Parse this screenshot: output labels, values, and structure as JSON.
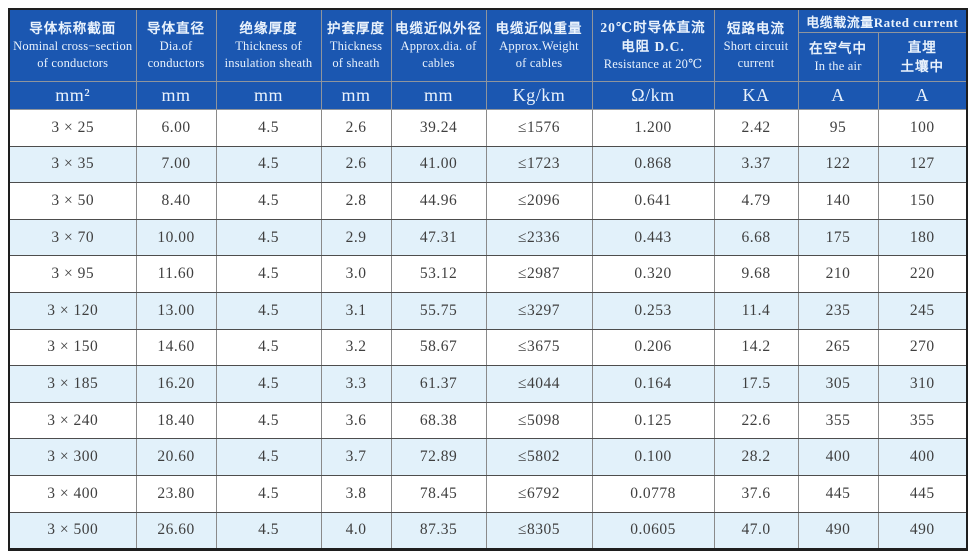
{
  "colors": {
    "header_bg": "#1b57b1",
    "header_text": "#e9f2fc",
    "row_alt_bg": "#e2f1fa",
    "grid_line": "#8a8a8a",
    "body_text": "#3f3f3f",
    "outer_border": "#1e1e1e"
  },
  "header": {
    "cols": [
      {
        "key": "nominal_cross_section",
        "title_lines": [
          "导体标称截面",
          "Nominal cross−section",
          "of conductors"
        ],
        "unit": "mm²"
      },
      {
        "key": "dia_of_conductors",
        "title_lines": [
          "导体直径",
          "Dia.of",
          "conductors"
        ],
        "unit": "mm"
      },
      {
        "key": "insulation_thickness",
        "title_lines": [
          "绝缘厚度",
          "Thickness of",
          "insulation sheath"
        ],
        "unit": "mm"
      },
      {
        "key": "sheath_thickness",
        "title_lines": [
          "护套厚度",
          "Thickness",
          "of sheath"
        ],
        "unit": "mm"
      },
      {
        "key": "approx_dia",
        "title_lines": [
          "电缆近似外径",
          "Approx.dia. of",
          "cables"
        ],
        "unit": "mm"
      },
      {
        "key": "approx_weight",
        "title_lines": [
          "电缆近似重量",
          "Approx.Weight",
          "of cables"
        ],
        "unit": "Kg/km"
      },
      {
        "key": "dc_resistance",
        "title_lines": [
          "20℃时导体直流",
          "电阻 D.C.",
          "Resistance at 20℃"
        ],
        "unit": "Ω/km"
      },
      {
        "key": "short_circuit_current",
        "title_lines": [
          "短路电流",
          "Short circuit",
          "current"
        ],
        "unit": "KA"
      }
    ],
    "rated_group": {
      "title": "电缆载流量Rated current",
      "sub_cols": [
        {
          "key": "current_in_air",
          "title_lines": [
            "在空气中",
            "In the air"
          ],
          "unit": "A"
        },
        {
          "key": "current_buried",
          "title_lines": [
            "直埋",
            "土壤中"
          ],
          "unit": "A"
        }
      ]
    }
  },
  "column_keys": [
    "nominal_cross_section",
    "dia_of_conductors",
    "insulation_thickness",
    "sheath_thickness",
    "approx_dia",
    "approx_weight",
    "dc_resistance",
    "short_circuit_current",
    "current_in_air",
    "current_buried"
  ],
  "rows": [
    [
      "3 × 25",
      "6.00",
      "4.5",
      "2.6",
      "39.24",
      "≤1576",
      "1.200",
      "2.42",
      "95",
      "100"
    ],
    [
      "3 × 35",
      "7.00",
      "4.5",
      "2.6",
      "41.00",
      "≤1723",
      "0.868",
      "3.37",
      "122",
      "127"
    ],
    [
      "3 × 50",
      "8.40",
      "4.5",
      "2.8",
      "44.96",
      "≤2096",
      "0.641",
      "4.79",
      "140",
      "150"
    ],
    [
      "3 × 70",
      "10.00",
      "4.5",
      "2.9",
      "47.31",
      "≤2336",
      "0.443",
      "6.68",
      "175",
      "180"
    ],
    [
      "3 × 95",
      "11.60",
      "4.5",
      "3.0",
      "53.12",
      "≤2987",
      "0.320",
      "9.68",
      "210",
      "220"
    ],
    [
      "3 × 120",
      "13.00",
      "4.5",
      "3.1",
      "55.75",
      "≤3297",
      "0.253",
      "11.4",
      "235",
      "245"
    ],
    [
      "3 × 150",
      "14.60",
      "4.5",
      "3.2",
      "58.67",
      "≤3675",
      "0.206",
      "14.2",
      "265",
      "270"
    ],
    [
      "3 × 185",
      "16.20",
      "4.5",
      "3.3",
      "61.37",
      "≤4044",
      "0.164",
      "17.5",
      "305",
      "310"
    ],
    [
      "3 × 240",
      "18.40",
      "4.5",
      "3.6",
      "68.38",
      "≤5098",
      "0.125",
      "22.6",
      "355",
      "355"
    ],
    [
      "3 × 300",
      "20.60",
      "4.5",
      "3.7",
      "72.89",
      "≤5802",
      "0.100",
      "28.2",
      "400",
      "400"
    ],
    [
      "3 × 400",
      "23.80",
      "4.5",
      "3.8",
      "78.45",
      "≤6792",
      "0.0778",
      "37.6",
      "445",
      "445"
    ],
    [
      "3 × 500",
      "26.60",
      "4.5",
      "4.0",
      "87.35",
      "≤8305",
      "0.0605",
      "47.0",
      "490",
      "490"
    ]
  ],
  "chart_data": {
    "type": "table",
    "title": "电缆载流量Rated current cable specification table",
    "categories": [
      "3 × 25",
      "3 × 35",
      "3 × 50",
      "3 × 70",
      "3 × 95",
      "3 × 120",
      "3 × 150",
      "3 × 185",
      "3 × 240",
      "3 × 300",
      "3 × 400",
      "3 × 500"
    ],
    "series": [
      {
        "name": "Dia.of conductors (mm)",
        "values": [
          6.0,
          7.0,
          8.4,
          10.0,
          11.6,
          13.0,
          14.6,
          16.2,
          18.4,
          20.6,
          23.8,
          26.6
        ]
      },
      {
        "name": "Thickness of insulation sheath (mm)",
        "values": [
          4.5,
          4.5,
          4.5,
          4.5,
          4.5,
          4.5,
          4.5,
          4.5,
          4.5,
          4.5,
          4.5,
          4.5
        ]
      },
      {
        "name": "Thickness of sheath (mm)",
        "values": [
          2.6,
          2.6,
          2.8,
          2.9,
          3.0,
          3.1,
          3.2,
          3.3,
          3.6,
          3.7,
          3.8,
          4.0
        ]
      },
      {
        "name": "Approx.dia. of cables (mm)",
        "values": [
          39.24,
          41.0,
          44.96,
          47.31,
          53.12,
          55.75,
          58.67,
          61.37,
          68.38,
          72.89,
          78.45,
          87.35
        ]
      },
      {
        "name": "Approx.Weight of cables (Kg/km, ≤)",
        "values": [
          1576,
          1723,
          2096,
          2336,
          2987,
          3297,
          3675,
          4044,
          5098,
          5802,
          6792,
          8305
        ]
      },
      {
        "name": "D.C. Resistance at 20℃ (Ω/km)",
        "values": [
          1.2,
          0.868,
          0.641,
          0.443,
          0.32,
          0.253,
          0.206,
          0.164,
          0.125,
          0.1,
          0.0778,
          0.0605
        ]
      },
      {
        "name": "Short circuit current (KA)",
        "values": [
          2.42,
          3.37,
          4.79,
          6.68,
          9.68,
          11.4,
          14.2,
          17.5,
          22.6,
          28.2,
          37.6,
          47.0
        ]
      },
      {
        "name": "Rated current in the air (A)",
        "values": [
          95,
          122,
          140,
          175,
          210,
          235,
          265,
          305,
          355,
          400,
          445,
          490
        ]
      },
      {
        "name": "Rated current buried in soil (A)",
        "values": [
          100,
          127,
          150,
          180,
          220,
          245,
          270,
          310,
          355,
          400,
          445,
          490
        ]
      }
    ]
  }
}
